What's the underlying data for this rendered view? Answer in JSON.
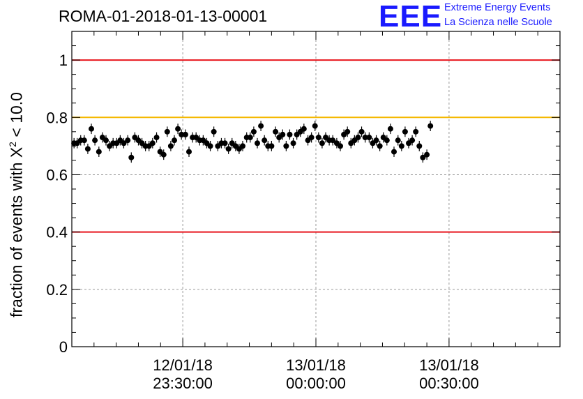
{
  "header": {
    "title": "ROMA-01-2018-01-13-00001",
    "logo_text": "EEE",
    "logo_line1": "Extreme Energy Events",
    "logo_line2": "La Scienza nelle Scuole"
  },
  "axes": {
    "ylabel_prefix": "fraction of events with X",
    "ylabel_sup": "2",
    "ylabel_suffix": " < 10.0"
  },
  "chart_data": {
    "type": "scatter",
    "title": "ROMA-01-2018-01-13-00001",
    "ylabel": "fraction of events with X² < 10.0",
    "xlim": [
      "23:05:00",
      "00:55:00"
    ],
    "ylim": [
      0,
      1.1
    ],
    "yticks": [
      0,
      0.2,
      0.4,
      0.6,
      0.8,
      1
    ],
    "ytick_labels": [
      "0",
      "0.2",
      "0.4",
      "0.6",
      "0.8",
      "1"
    ],
    "xticks": [
      {
        "date": "12/01/18",
        "time": "23:30:00",
        "minutes": 25
      },
      {
        "date": "13/01/18",
        "time": "00:00:00",
        "minutes": 55
      },
      {
        "date": "13/01/18",
        "time": "00:30:00",
        "minutes": 85
      }
    ],
    "reference_lines": [
      {
        "y": 1.0,
        "color": "#e8141c"
      },
      {
        "y": 0.8,
        "color": "#f5b800"
      },
      {
        "y": 0.4,
        "color": "#e8141c"
      }
    ],
    "grid": true,
    "marker_color": "#000000",
    "y_error": 0.018,
    "points": [
      {
        "minutes": 0.5,
        "y": 0.71
      },
      {
        "minutes": 1.2,
        "y": 0.71
      },
      {
        "minutes": 2.0,
        "y": 0.72
      },
      {
        "minutes": 2.8,
        "y": 0.72
      },
      {
        "minutes": 3.6,
        "y": 0.69
      },
      {
        "minutes": 4.4,
        "y": 0.76
      },
      {
        "minutes": 5.2,
        "y": 0.72
      },
      {
        "minutes": 6.1,
        "y": 0.68
      },
      {
        "minutes": 6.9,
        "y": 0.73
      },
      {
        "minutes": 7.7,
        "y": 0.72
      },
      {
        "minutes": 8.5,
        "y": 0.7
      },
      {
        "minutes": 9.3,
        "y": 0.71
      },
      {
        "minutes": 10.1,
        "y": 0.71
      },
      {
        "minutes": 10.9,
        "y": 0.72
      },
      {
        "minutes": 11.7,
        "y": 0.71
      },
      {
        "minutes": 12.6,
        "y": 0.72
      },
      {
        "minutes": 13.4,
        "y": 0.66
      },
      {
        "minutes": 14.2,
        "y": 0.73
      },
      {
        "minutes": 15.0,
        "y": 0.72
      },
      {
        "minutes": 15.8,
        "y": 0.71
      },
      {
        "minutes": 16.6,
        "y": 0.7
      },
      {
        "minutes": 17.4,
        "y": 0.7
      },
      {
        "minutes": 18.2,
        "y": 0.71
      },
      {
        "minutes": 19.1,
        "y": 0.73
      },
      {
        "minutes": 19.9,
        "y": 0.68
      },
      {
        "minutes": 20.7,
        "y": 0.67
      },
      {
        "minutes": 21.5,
        "y": 0.75
      },
      {
        "minutes": 22.3,
        "y": 0.7
      },
      {
        "minutes": 23.1,
        "y": 0.72
      },
      {
        "minutes": 23.9,
        "y": 0.76
      },
      {
        "minutes": 24.7,
        "y": 0.74
      },
      {
        "minutes": 25.6,
        "y": 0.74
      },
      {
        "minutes": 26.4,
        "y": 0.68
      },
      {
        "minutes": 27.2,
        "y": 0.73
      },
      {
        "minutes": 28.0,
        "y": 0.73
      },
      {
        "minutes": 28.8,
        "y": 0.72
      },
      {
        "minutes": 29.6,
        "y": 0.72
      },
      {
        "minutes": 30.4,
        "y": 0.71
      },
      {
        "minutes": 31.2,
        "y": 0.7
      },
      {
        "minutes": 32.0,
        "y": 0.75
      },
      {
        "minutes": 32.9,
        "y": 0.7
      },
      {
        "minutes": 33.7,
        "y": 0.71
      },
      {
        "minutes": 34.5,
        "y": 0.71
      },
      {
        "minutes": 35.3,
        "y": 0.69
      },
      {
        "minutes": 36.1,
        "y": 0.71
      },
      {
        "minutes": 36.9,
        "y": 0.7
      },
      {
        "minutes": 37.7,
        "y": 0.69
      },
      {
        "minutes": 38.5,
        "y": 0.7
      },
      {
        "minutes": 39.4,
        "y": 0.73
      },
      {
        "minutes": 40.2,
        "y": 0.73
      },
      {
        "minutes": 41.0,
        "y": 0.75
      },
      {
        "minutes": 41.8,
        "y": 0.71
      },
      {
        "minutes": 42.6,
        "y": 0.77
      },
      {
        "minutes": 43.4,
        "y": 0.72
      },
      {
        "minutes": 44.2,
        "y": 0.7
      },
      {
        "minutes": 45.0,
        "y": 0.7
      },
      {
        "minutes": 45.9,
        "y": 0.75
      },
      {
        "minutes": 46.7,
        "y": 0.73
      },
      {
        "minutes": 47.5,
        "y": 0.74
      },
      {
        "minutes": 48.3,
        "y": 0.7
      },
      {
        "minutes": 49.1,
        "y": 0.74
      },
      {
        "minutes": 49.9,
        "y": 0.71
      },
      {
        "minutes": 50.7,
        "y": 0.74
      },
      {
        "minutes": 51.5,
        "y": 0.75
      },
      {
        "minutes": 52.3,
        "y": 0.76
      },
      {
        "minutes": 53.2,
        "y": 0.72
      },
      {
        "minutes": 54.0,
        "y": 0.73
      },
      {
        "minutes": 54.8,
        "y": 0.77
      },
      {
        "minutes": 55.6,
        "y": 0.73
      },
      {
        "minutes": 56.4,
        "y": 0.71
      },
      {
        "minutes": 57.2,
        "y": 0.73
      },
      {
        "minutes": 58.0,
        "y": 0.72
      },
      {
        "minutes": 58.8,
        "y": 0.72
      },
      {
        "minutes": 59.7,
        "y": 0.71
      },
      {
        "minutes": 60.5,
        "y": 0.7
      },
      {
        "minutes": 61.3,
        "y": 0.74
      },
      {
        "minutes": 62.1,
        "y": 0.75
      },
      {
        "minutes": 62.9,
        "y": 0.71
      },
      {
        "minutes": 63.7,
        "y": 0.72
      },
      {
        "minutes": 64.5,
        "y": 0.73
      },
      {
        "minutes": 65.3,
        "y": 0.75
      },
      {
        "minutes": 66.1,
        "y": 0.73
      },
      {
        "minutes": 67.0,
        "y": 0.73
      },
      {
        "minutes": 67.8,
        "y": 0.71
      },
      {
        "minutes": 68.6,
        "y": 0.72
      },
      {
        "minutes": 69.4,
        "y": 0.7
      },
      {
        "minutes": 70.2,
        "y": 0.73
      },
      {
        "minutes": 71.0,
        "y": 0.72
      },
      {
        "minutes": 71.8,
        "y": 0.76
      },
      {
        "minutes": 72.6,
        "y": 0.68
      },
      {
        "minutes": 73.5,
        "y": 0.72
      },
      {
        "minutes": 74.3,
        "y": 0.7
      },
      {
        "minutes": 75.1,
        "y": 0.75
      },
      {
        "minutes": 75.9,
        "y": 0.71
      },
      {
        "minutes": 76.7,
        "y": 0.72
      },
      {
        "minutes": 77.5,
        "y": 0.75
      },
      {
        "minutes": 78.3,
        "y": 0.7
      },
      {
        "minutes": 79.1,
        "y": 0.66
      },
      {
        "minutes": 80.0,
        "y": 0.67
      },
      {
        "minutes": 80.8,
        "y": 0.77
      }
    ]
  }
}
